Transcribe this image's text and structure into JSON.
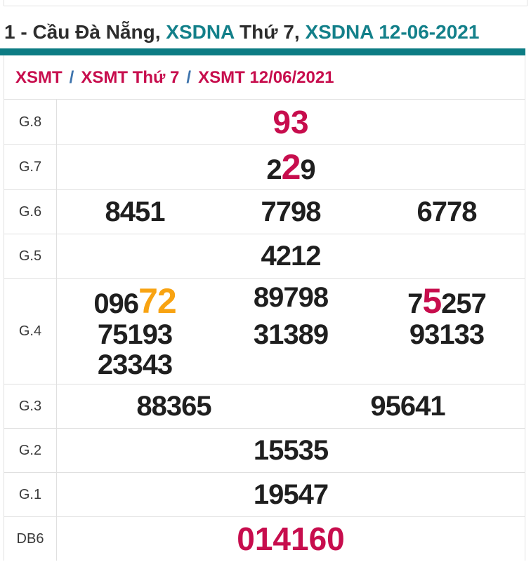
{
  "colors": {
    "teal_bar": "#0d7c84",
    "title_teal": "#13808a",
    "title_dark": "#2d2d2d",
    "crimson": "#c70d4d",
    "orange": "#f8a312",
    "number_black": "#1f1f1f",
    "breadcrumb_separator_blue": "#3e74ad",
    "border_gray": "#e0e0e0"
  },
  "title": {
    "parts": [
      {
        "text": "1 - Cầu Đà Nẵng, ",
        "color": "dark"
      },
      {
        "text": "XSDNA ",
        "color": "teal"
      },
      {
        "text": "Thứ 7, ",
        "color": "dark"
      },
      {
        "text": "XSDNA 12-06-2021",
        "color": "teal"
      }
    ]
  },
  "breadcrumb": {
    "separator": "/",
    "items": [
      "XSMT",
      "XSMT Thứ 7",
      "XSMT 12/06/2021"
    ]
  },
  "results_table": {
    "rows": [
      {
        "label": "G.8",
        "columns": 1,
        "cells": [
          [
            {
              "text": "93",
              "color": "crimson",
              "em": true
            }
          ]
        ]
      },
      {
        "label": "G.7",
        "columns": 1,
        "cells": [
          [
            {
              "text": "2",
              "color": "black"
            },
            {
              "text": "2",
              "color": "crimson",
              "em": true
            },
            {
              "text": "9",
              "color": "black"
            }
          ]
        ]
      },
      {
        "label": "G.6",
        "columns": 3,
        "cells": [
          [
            {
              "text": "8451",
              "color": "black"
            }
          ],
          [
            {
              "text": "7798",
              "color": "black"
            }
          ],
          [
            {
              "text": "6778",
              "color": "black"
            }
          ]
        ]
      },
      {
        "label": "G.5",
        "columns": 1,
        "cells": [
          [
            {
              "text": "4212",
              "color": "black"
            }
          ]
        ]
      },
      {
        "label": "G.4",
        "columns": 3,
        "cells": [
          [
            {
              "text": "096",
              "color": "black"
            },
            {
              "text": "72",
              "color": "orange",
              "em": true
            }
          ],
          [
            {
              "text": "89798",
              "color": "black"
            }
          ],
          [
            {
              "text": "7",
              "color": "black"
            },
            {
              "text": "5",
              "color": "crimson",
              "em": true
            },
            {
              "text": "257",
              "color": "black"
            }
          ],
          [
            {
              "text": "75193",
              "color": "black"
            }
          ],
          [
            {
              "text": "31389",
              "color": "black"
            }
          ],
          [
            {
              "text": "93133",
              "color": "black"
            }
          ],
          [
            {
              "text": "23343",
              "color": "black"
            }
          ]
        ]
      },
      {
        "label": "G.3",
        "columns": 2,
        "cells": [
          [
            {
              "text": "88365",
              "color": "black"
            }
          ],
          [
            {
              "text": "95641",
              "color": "black"
            }
          ]
        ]
      },
      {
        "label": "G.2",
        "columns": 1,
        "cells": [
          [
            {
              "text": "15535",
              "color": "black"
            }
          ]
        ]
      },
      {
        "label": "G.1",
        "columns": 1,
        "cells": [
          [
            {
              "text": "19547",
              "color": "black"
            }
          ]
        ]
      },
      {
        "label": "DB6",
        "columns": 1,
        "cells": [
          [
            {
              "text": "014160",
              "color": "crimson",
              "em": true
            }
          ]
        ]
      }
    ]
  }
}
